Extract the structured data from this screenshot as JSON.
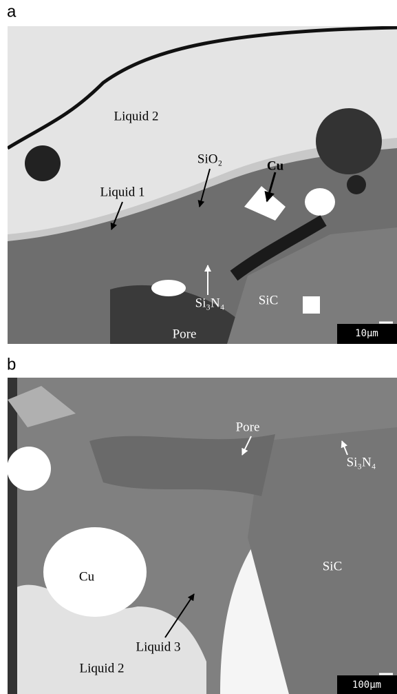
{
  "panels": [
    {
      "letter": "a",
      "labels": [
        "Liquid 2",
        "SiO₂",
        "Cu",
        "Liquid 1",
        "Si₃N₄",
        "SiC",
        "Pore"
      ],
      "scale_bar": "10μm"
    },
    {
      "letter": "b",
      "labels": [
        "Pore",
        "Si₃N₄",
        "SiC",
        "Cu",
        "Liquid 3",
        "Liquid 2"
      ],
      "scale_bar": "100μm"
    }
  ]
}
